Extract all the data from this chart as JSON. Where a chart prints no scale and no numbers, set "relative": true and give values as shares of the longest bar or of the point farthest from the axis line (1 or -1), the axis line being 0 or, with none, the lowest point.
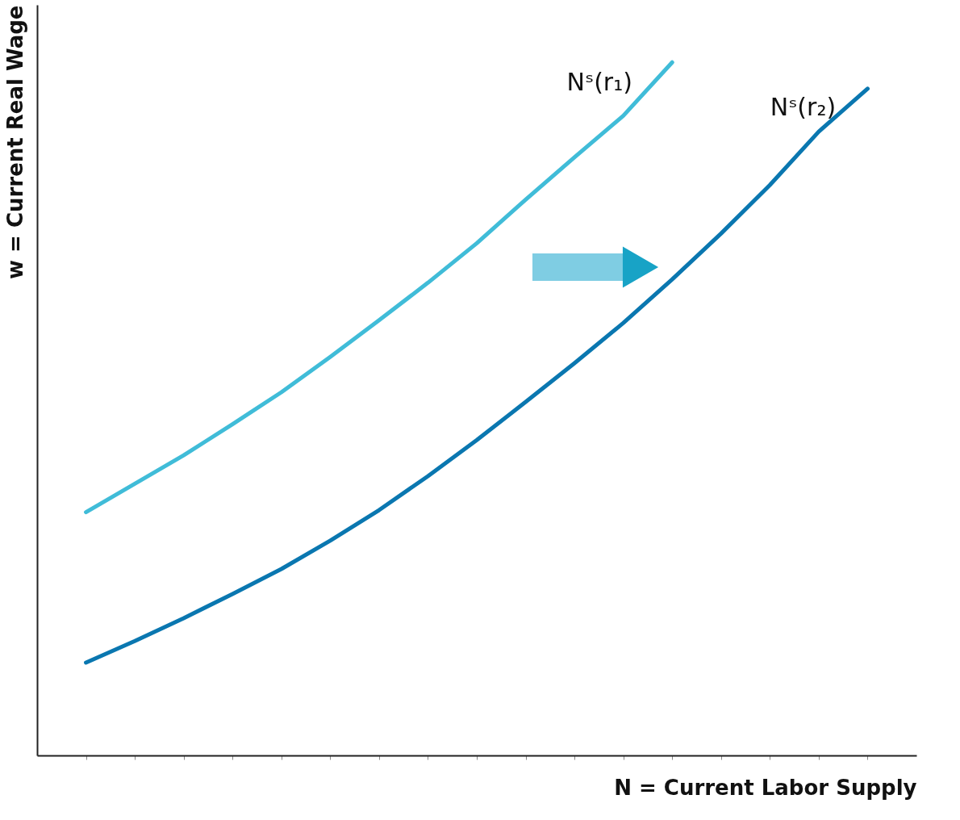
{
  "chart_data": {
    "type": "line",
    "relative": true,
    "xlabel": "N = Current Labor Supply",
    "ylabel": "w = Current Real Wage",
    "legend": false,
    "marker": "none",
    "line_style": "solid",
    "categories": [
      null,
      null,
      null,
      null,
      null,
      null,
      null,
      null,
      null,
      null,
      null,
      null,
      null,
      null,
      null,
      null,
      null
    ],
    "series": [
      {
        "name": "Nˢ(r₁)",
        "color": "#40bcd8",
        "values": [
          0.351,
          0.392,
          0.433,
          0.478,
          0.524,
          0.575,
          0.628,
          0.682,
          0.739,
          0.802,
          0.863,
          0.923,
          1,
          null,
          null,
          null,
          null
        ]
      },
      {
        "name": "Nˢ(r₂)",
        "color": "#0a77b0",
        "values": [
          0.134,
          0.165,
          0.198,
          0.233,
          0.269,
          0.31,
          0.354,
          0.403,
          0.455,
          0.51,
          0.566,
          0.624,
          0.687,
          0.753,
          0.823,
          0.9,
          0.962
        ]
      }
    ]
  }
}
